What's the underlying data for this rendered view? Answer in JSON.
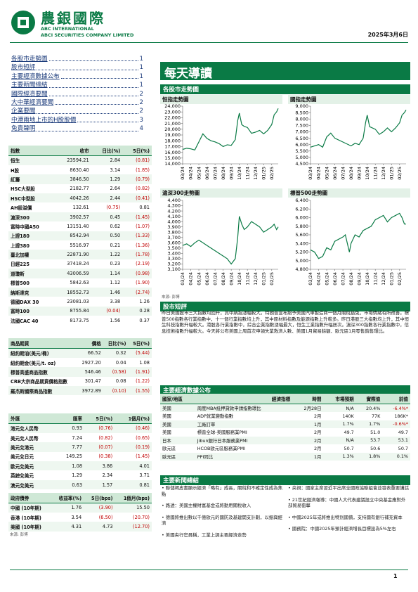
{
  "header": {
    "logo_cn": "農銀國際",
    "logo_en1": "ABC INTERNATIONAL",
    "logo_en2": "ABCI SECURITIES COMPANY LIMITED",
    "date": "2025年3月6日"
  },
  "toc": [
    {
      "title": "各股市走勢圖",
      "page": "1"
    },
    {
      "title": "股市短評",
      "page": "1"
    },
    {
      "title": "主要經濟數據公布",
      "page": "1"
    },
    {
      "title": "主要新聞總結",
      "page": "1"
    },
    {
      "title": "國際經濟要聞",
      "page": "2"
    },
    {
      "title": "大中華經濟要聞",
      "page": "2"
    },
    {
      "title": "企業要聞",
      "page": "2"
    },
    {
      "title": "中港兩地上市的H股股價",
      "page": "3"
    },
    {
      "title": "免責聲明",
      "page": "4"
    }
  ],
  "index_table": {
    "header": [
      "指數",
      "收市",
      "日比(%)",
      "5日(%)"
    ],
    "rows": [
      [
        "恒生",
        "23594.21",
        "2.84",
        "(0.81)"
      ],
      [
        "H股",
        "8630.40",
        "3.14",
        "(1.85)"
      ],
      [
        "紅籌",
        "3846.50",
        "1.29",
        "(0.79)"
      ],
      [
        "HSC大型股",
        "2182.77",
        "2.64",
        "(0.82)"
      ],
      [
        "HSC中型股",
        "4042.26",
        "2.44",
        "(0.41)"
      ],
      [
        "AH股溢價",
        "132.61",
        "(0.75)",
        "0.81"
      ],
      [
        "滬深300",
        "3902.57",
        "0.45",
        "(1.45)"
      ],
      [
        "富時中國A50",
        "13151.40",
        "0.62",
        "(1.07)"
      ],
      [
        "上證180",
        "8542.94",
        "0.50",
        "(1.33)"
      ],
      [
        "上證380",
        "5516.97",
        "0.21",
        "(1.36)"
      ],
      [
        "臺北加權",
        "22871.90",
        "1.22",
        "(1.78)"
      ],
      [
        "日經225",
        "37418.24",
        "0.23",
        "(2.19)"
      ],
      [
        "道瓊斯",
        "43006.59",
        "1.14",
        "(0.98)"
      ],
      [
        "標普500",
        "5842.63",
        "1.12",
        "(1.90)"
      ],
      [
        "納斯達克",
        "18552.73",
        "1.46",
        "(2.74)"
      ],
      [
        "德國DAX 30",
        "23081.03",
        "3.38",
        "1.26"
      ],
      [
        "富時100",
        "8755.84",
        "(0.04)",
        "0.28"
      ],
      [
        "法國CAC 40",
        "8173.75",
        "1.56",
        "0.37"
      ]
    ]
  },
  "commodity_table": {
    "header": [
      "商品期貨",
      "價格",
      "日比(%)",
      "5日(%)"
    ],
    "rows": [
      [
        "紐約期油(美元/桶)",
        "66.52",
        "0.32",
        "(5.44)"
      ],
      [
        "紐約期金(美元/t. oz)",
        "2927.20",
        "0.04",
        "1.08"
      ],
      [
        "標普高盛商品指數",
        "546.46",
        "(0.58)",
        "(1.91)"
      ],
      [
        "CRB大宗商品期貨價格指數",
        "301.47",
        "0.08",
        "(1.22)"
      ],
      [
        "羅杰斯國際商品指數",
        "3972.89",
        "(0.10)",
        "(1.55)"
      ]
    ]
  },
  "fx_table": {
    "header": [
      "外匯",
      "匯率",
      "5日(%)",
      "1個月(%)"
    ],
    "rows": [
      [
        "港元兌人民幣",
        "0.93",
        "(0.76)",
        "(0.46)"
      ],
      [
        "美元兌人民幣",
        "7.24",
        "(0.82)",
        "(0.65)"
      ],
      [
        "美元兌港元",
        "7.77",
        "(0.07)",
        "(0.19)"
      ],
      [
        "美元兌日元",
        "149.25",
        "(0.38)",
        "(1.45)"
      ],
      [
        "歐元兌美元",
        "1.08",
        "3.86",
        "4.01"
      ],
      [
        "英鎊兌美元",
        "1.29",
        "2.34",
        "3.71"
      ],
      [
        "澳元兌美元",
        "0.63",
        "1.57",
        "0.81"
      ]
    ]
  },
  "bond_table": {
    "header": [
      "政府債券",
      "收益率(%)",
      "5日(bps)",
      "1個月(bps)"
    ],
    "rows": [
      [
        "中國 (10年期)",
        "1.76",
        "(3.90)",
        "15.50"
      ],
      [
        "香港 (10年期)",
        "3.54",
        "(6.50)",
        "(20.70)"
      ],
      [
        "美國 (10年期)",
        "4.31",
        "4.73",
        "(12.70)"
      ]
    ]
  },
  "left_source": "來源: 彭博",
  "title": "每天導讀",
  "chart_section": "各股市走勢圖",
  "chart_data": [
    {
      "type": "line",
      "title": "恒指走勢圖",
      "color": "#0a7a45",
      "x": [
        0,
        0.5,
        1,
        1.5,
        2,
        2.5,
        3,
        3.5,
        4,
        4.5,
        5,
        5.5,
        6,
        6.5,
        6.8,
        7,
        7.3,
        7.6,
        8,
        8.5,
        9,
        9.5,
        10,
        10.5,
        11,
        11.3,
        11.6,
        11.8
      ],
      "values": [
        16500,
        16700,
        16600,
        16400,
        17800,
        19200,
        18400,
        18000,
        17800,
        17500,
        17000,
        17300,
        17200,
        18200,
        21500,
        22800,
        20800,
        20500,
        20300,
        19300,
        19500,
        19800,
        19200,
        19800,
        20800,
        22500,
        23000,
        23600
      ],
      "xlim": [
        0,
        11.8
      ],
      "xticks": [
        {
          "value": 0,
          "label": "03/24"
        },
        {
          "value": 1,
          "label": "04/24"
        },
        {
          "value": 2,
          "label": "05/24"
        },
        {
          "value": 3,
          "label": "06/24"
        },
        {
          "value": 4,
          "label": "07/24"
        },
        {
          "value": 5,
          "label": "08/24"
        },
        {
          "value": 6,
          "label": "09/24"
        },
        {
          "value": 7,
          "label": "10/24"
        },
        {
          "value": 8,
          "label": "11/24"
        },
        {
          "value": 9,
          "label": "12/24"
        },
        {
          "value": 10,
          "label": "01/25"
        },
        {
          "value": 11,
          "label": "02/25"
        }
      ],
      "ylim": [
        14000,
        24000
      ],
      "yticks": [
        {
          "value": 14000,
          "label": "14,000"
        },
        {
          "value": 15000,
          "label": "15,000"
        },
        {
          "value": 16000,
          "label": "16,000"
        },
        {
          "value": 17000,
          "label": "17,000"
        },
        {
          "value": 18000,
          "label": "18,000"
        },
        {
          "value": 19000,
          "label": "19,000"
        },
        {
          "value": 20000,
          "label": "20,000"
        },
        {
          "value": 21000,
          "label": "21,000"
        },
        {
          "value": 22000,
          "label": "22,000"
        },
        {
          "value": 23000,
          "label": "23,000"
        },
        {
          "value": 24000,
          "label": "24,000"
        }
      ]
    },
    {
      "type": "line",
      "title": "國指走勢圖",
      "color": "#0a7a45",
      "x": [
        0,
        1,
        1.5,
        2,
        2.5,
        3,
        4,
        5,
        5.5,
        6,
        6.5,
        6.8,
        7,
        7.3,
        8,
        8.5,
        9,
        9.5,
        10,
        10.5,
        11,
        11.3,
        11.6,
        11.8
      ],
      "values": [
        5800,
        6000,
        5800,
        6600,
        6900,
        6500,
        6200,
        5900,
        6100,
        6000,
        6500,
        7700,
        8300,
        7400,
        7200,
        6800,
        7000,
        7300,
        7000,
        7300,
        7700,
        8300,
        8500,
        8700
      ],
      "xlim": [
        0,
        11.8
      ],
      "xticks": [
        {
          "value": 0,
          "label": "03/24"
        },
        {
          "value": 1,
          "label": "04/24"
        },
        {
          "value": 2,
          "label": "05/24"
        },
        {
          "value": 3,
          "label": "06/24"
        },
        {
          "value": 4,
          "label": "07/24"
        },
        {
          "value": 5,
          "label": "08/24"
        },
        {
          "value": 6,
          "label": "09/24"
        },
        {
          "value": 7,
          "label": "10/24"
        },
        {
          "value": 8,
          "label": "11/24"
        },
        {
          "value": 9,
          "label": "12/24"
        },
        {
          "value": 10,
          "label": "01/25"
        },
        {
          "value": 11,
          "label": "02/25"
        }
      ],
      "ylim": [
        4500,
        9000
      ],
      "yticks": [
        {
          "value": 4500,
          "label": "4,500"
        },
        {
          "value": 5000,
          "label": "5,000"
        },
        {
          "value": 5500,
          "label": "5,500"
        },
        {
          "value": 6000,
          "label": "6,000"
        },
        {
          "value": 6500,
          "label": "6,500"
        },
        {
          "value": 7000,
          "label": "7,000"
        },
        {
          "value": 7500,
          "label": "7,500"
        },
        {
          "value": 8000,
          "label": "8,000"
        },
        {
          "value": 8500,
          "label": "8,500"
        },
        {
          "value": 9000,
          "label": "9,000"
        }
      ]
    },
    {
      "type": "line",
      "title": "滬深300走勢圖",
      "color": "#0a7a45",
      "x": [
        0,
        0.5,
        1,
        1.5,
        2,
        2.5,
        3,
        3.5,
        4,
        4.5,
        5,
        5.5,
        6,
        6.5,
        6.8,
        7,
        7.3,
        7.6,
        8,
        8.5,
        9,
        9.5,
        10,
        10.5,
        11,
        11.3,
        11.6,
        11.8
      ],
      "values": [
        3550,
        3580,
        3530,
        3600,
        3650,
        3600,
        3550,
        3500,
        3450,
        3400,
        3350,
        3300,
        3200,
        3300,
        3700,
        4100,
        3950,
        3850,
        3900,
        4000,
        3950,
        3900,
        3800,
        3850,
        3900,
        3950,
        3850,
        3900
      ],
      "xlim": [
        0,
        11.8
      ],
      "xticks": [
        {
          "value": 0,
          "label": "03/24"
        },
        {
          "value": 1,
          "label": "04/24"
        },
        {
          "value": 2,
          "label": "05/24"
        },
        {
          "value": 3,
          "label": "06/24"
        },
        {
          "value": 4,
          "label": "07/24"
        },
        {
          "value": 5,
          "label": "08/24"
        },
        {
          "value": 6,
          "label": "09/24"
        },
        {
          "value": 7,
          "label": "10/24"
        },
        {
          "value": 8,
          "label": "11/24"
        },
        {
          "value": 9,
          "label": "12/24"
        },
        {
          "value": 10,
          "label": "01/25"
        },
        {
          "value": 11,
          "label": "02/25"
        }
      ],
      "ylim": [
        3100,
        4400
      ],
      "yticks": [
        {
          "value": 3100,
          "label": "3,100"
        },
        {
          "value": 3200,
          "label": "3,200"
        },
        {
          "value": 3300,
          "label": "3,300"
        },
        {
          "value": 3400,
          "label": "3,400"
        },
        {
          "value": 3500,
          "label": "3,500"
        },
        {
          "value": 3600,
          "label": "3,600"
        },
        {
          "value": 3700,
          "label": "3,700"
        },
        {
          "value": 3800,
          "label": "3,800"
        },
        {
          "value": 3900,
          "label": "3,900"
        },
        {
          "value": 4000,
          "label": "4,000"
        },
        {
          "value": 4100,
          "label": "4,100"
        },
        {
          "value": 4200,
          "label": "4,200"
        },
        {
          "value": 4300,
          "label": "4,300"
        },
        {
          "value": 4400,
          "label": "4,400"
        }
      ]
    },
    {
      "type": "line",
      "title": "標普500走勢圖",
      "color": "#0a7a45",
      "x": [
        0,
        0.5,
        1,
        1.5,
        2,
        2.5,
        3,
        4,
        4.3,
        4.8,
        5,
        5.5,
        6,
        6.5,
        7,
        7.5,
        8,
        8.5,
        9,
        9.5,
        10,
        10.5,
        11,
        11.3,
        11.6,
        11.8
      ],
      "values": [
        5250,
        5200,
        5050,
        5100,
        5300,
        5250,
        5450,
        5550,
        5600,
        5200,
        5400,
        5600,
        5550,
        5700,
        5750,
        5800,
        5950,
        6000,
        6050,
        5900,
        6000,
        6050,
        6100,
        6000,
        5850,
        5850
      ],
      "xlim": [
        0,
        11.8
      ],
      "xticks": [
        {
          "value": 0,
          "label": "03/24"
        },
        {
          "value": 1,
          "label": "04/24"
        },
        {
          "value": 2,
          "label": "05/24"
        },
        {
          "value": 3,
          "label": "06/24"
        },
        {
          "value": 4,
          "label": "07/24"
        },
        {
          "value": 5,
          "label": "08/24"
        },
        {
          "value": 6,
          "label": "09/24"
        },
        {
          "value": 7,
          "label": "10/24"
        },
        {
          "value": 8,
          "label": "11/24"
        },
        {
          "value": 9,
          "label": "12/24"
        },
        {
          "value": 10,
          "label": "01/25"
        },
        {
          "value": 11,
          "label": "02/25"
        }
      ],
      "ylim": [
        4800,
        6400
      ],
      "yticks": [
        {
          "value": 4800,
          "label": "4,800"
        },
        {
          "value": 5000,
          "label": "5,000"
        },
        {
          "value": 5200,
          "label": "5,200"
        },
        {
          "value": 5400,
          "label": "5,400"
        },
        {
          "value": 5600,
          "label": "5,600"
        },
        {
          "value": 5800,
          "label": "5,800"
        },
        {
          "value": 6000,
          "label": "6,000"
        },
        {
          "value": 6200,
          "label": "6,200"
        },
        {
          "value": 6400,
          "label": "6,400"
        }
      ]
    }
  ],
  "chart_source": "來源: 彭博",
  "commentary": {
    "title": "股市短評",
    "text": "昨日美國股市三大指數均回升，其中納指漲幅較大。特朗普宣布給予美國汽車製造商一個月關稅豁免，市場情緒有所改善。標普500指數各行業指數中，十一個行業指數均上升，其中原材料指數及能源指數上升較多。昨日港股三大指數均上升，其中恒生科技指數升幅較大。港股各行業指數中，綜合企業指數漲幅最大，恒生工業指數升幅居次。滬深300指數各行業指數中，信息技術指數升幅較大。今天將公布美國上周首次申領失業救濟人數、美國1月貿易餘額、歐元區1月零售銷售環比。"
  },
  "econ": {
    "title": "主要經濟數據公布",
    "header": [
      "國家/地區",
      "經濟指標",
      "時間",
      "市場預期",
      "實際值",
      "前值"
    ],
    "rows": [
      [
        "美國",
        "周度MBA抵押貸款申請指數環比",
        "2月28日",
        "N/A",
        "20.4%",
        "-6.4%*"
      ],
      [
        "美國",
        "ADP就業變動指數",
        "2月",
        "140K",
        "77K",
        "186K*"
      ],
      [
        "美國",
        "工廠訂單",
        "1月",
        "1.7%",
        "1.7%",
        "-0.6%*"
      ],
      [
        "美國",
        "標普全球-美國服務業PMI",
        "2月",
        "49.7",
        "51.0",
        "49.7"
      ],
      [
        "日本",
        "Jibun銀行日本服務業PMI",
        "2月",
        "N/A",
        "53.7",
        "53.1"
      ],
      [
        "歐元區",
        "HCOB歐元區服務業PMI",
        "2月",
        "50.7",
        "50.6",
        "50.7"
      ],
      [
        "歐元區",
        "PPI同比",
        "1月",
        "1.3%",
        "1.8%",
        "0.1%"
      ]
    ]
  },
  "news": {
    "title": "主要新聞總結",
    "left": [
      "• 聯儲褐皮書顯示經濟「略有」成長，關稅和不確定性成為焦點",
      "• 路透：美國主權財富基金或將動用關稅收入",
      "• 德國將推出數以千億歐元的國防及基建開支計劃，以振興經濟",
      "• 美國央行官員稱，工業上調主要經濟走勢"
    ],
    "right": [
      "• 央視：國家主席習近平出席全國政協聯組會並發表重要講話",
      "• 21世紀經濟報導：中國人大代表建議設立中央基金應對外部貿易衝擊",
      "• 中國2025年或將推出特別國債，支持國有銀行補充資本",
      "• 國務院：中國2025年預計經濟增長目標設為5%左右"
    ]
  },
  "page_number": "1"
}
